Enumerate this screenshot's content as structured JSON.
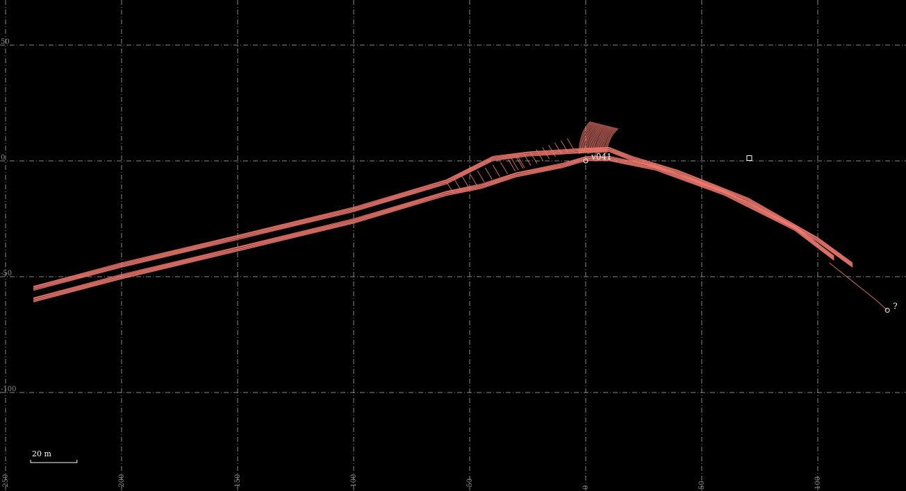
{
  "map": {
    "background": "#000000",
    "line_color": "#f47c72",
    "grid_color": "#8a8a8a",
    "x_ticks": [
      -250,
      -200,
      -150,
      -100,
      -50,
      0,
      50,
      100
    ],
    "y_ticks": [
      50,
      0,
      -50,
      -100
    ],
    "x_tick_labels": [
      "-250",
      "-200",
      "-150",
      "-100",
      "-50",
      "0",
      "50",
      "100"
    ],
    "y_tick_labels": [
      "50",
      "0",
      "-50",
      "-100"
    ],
    "x_range": [
      -252,
      138
    ],
    "y_range": [
      -141,
      63
    ],
    "scale_label": "20 m",
    "scale_length_m": 20,
    "stations": [
      {
        "name": "v041",
        "x": 0,
        "y": 0,
        "shape": "circle"
      },
      {
        "name": "",
        "x": 70.5,
        "y": 1.2,
        "shape": "square"
      },
      {
        "name": "?",
        "x": 130,
        "y": -64.5,
        "shape": "circle"
      }
    ],
    "passage_paths": {
      "north_branch": [
        [
          -238,
          -55
        ],
        [
          -200,
          -45
        ],
        [
          -150,
          -33
        ],
        [
          -100,
          -21
        ],
        [
          -60,
          -9
        ],
        [
          -40,
          1
        ],
        [
          -25,
          3
        ],
        [
          0,
          4.5
        ],
        [
          10,
          5
        ],
        [
          20,
          1
        ],
        [
          40,
          -5
        ],
        [
          70,
          -17
        ],
        [
          100,
          -34
        ],
        [
          115,
          -45
        ]
      ],
      "south_branch": [
        [
          -238,
          -60
        ],
        [
          -200,
          -50
        ],
        [
          -150,
          -38
        ],
        [
          -100,
          -26
        ],
        [
          -60,
          -14
        ],
        [
          -45,
          -11
        ],
        [
          -30,
          -6
        ],
        [
          -10,
          -2
        ],
        [
          0,
          1
        ],
        [
          10,
          1
        ],
        [
          30,
          -3
        ],
        [
          60,
          -14
        ],
        [
          90,
          -29
        ],
        [
          107,
          -42
        ]
      ],
      "upper_chamber": [
        [
          -5,
          5
        ],
        [
          -3,
          12
        ],
        [
          2,
          16
        ],
        [
          8,
          17
        ],
        [
          15,
          15
        ],
        [
          12,
          10
        ],
        [
          10,
          4
        ]
      ],
      "lower_tail": [
        [
          105,
          -44
        ],
        [
          115,
          -52
        ],
        [
          125,
          -60
        ],
        [
          130,
          -64.5
        ]
      ]
    }
  }
}
